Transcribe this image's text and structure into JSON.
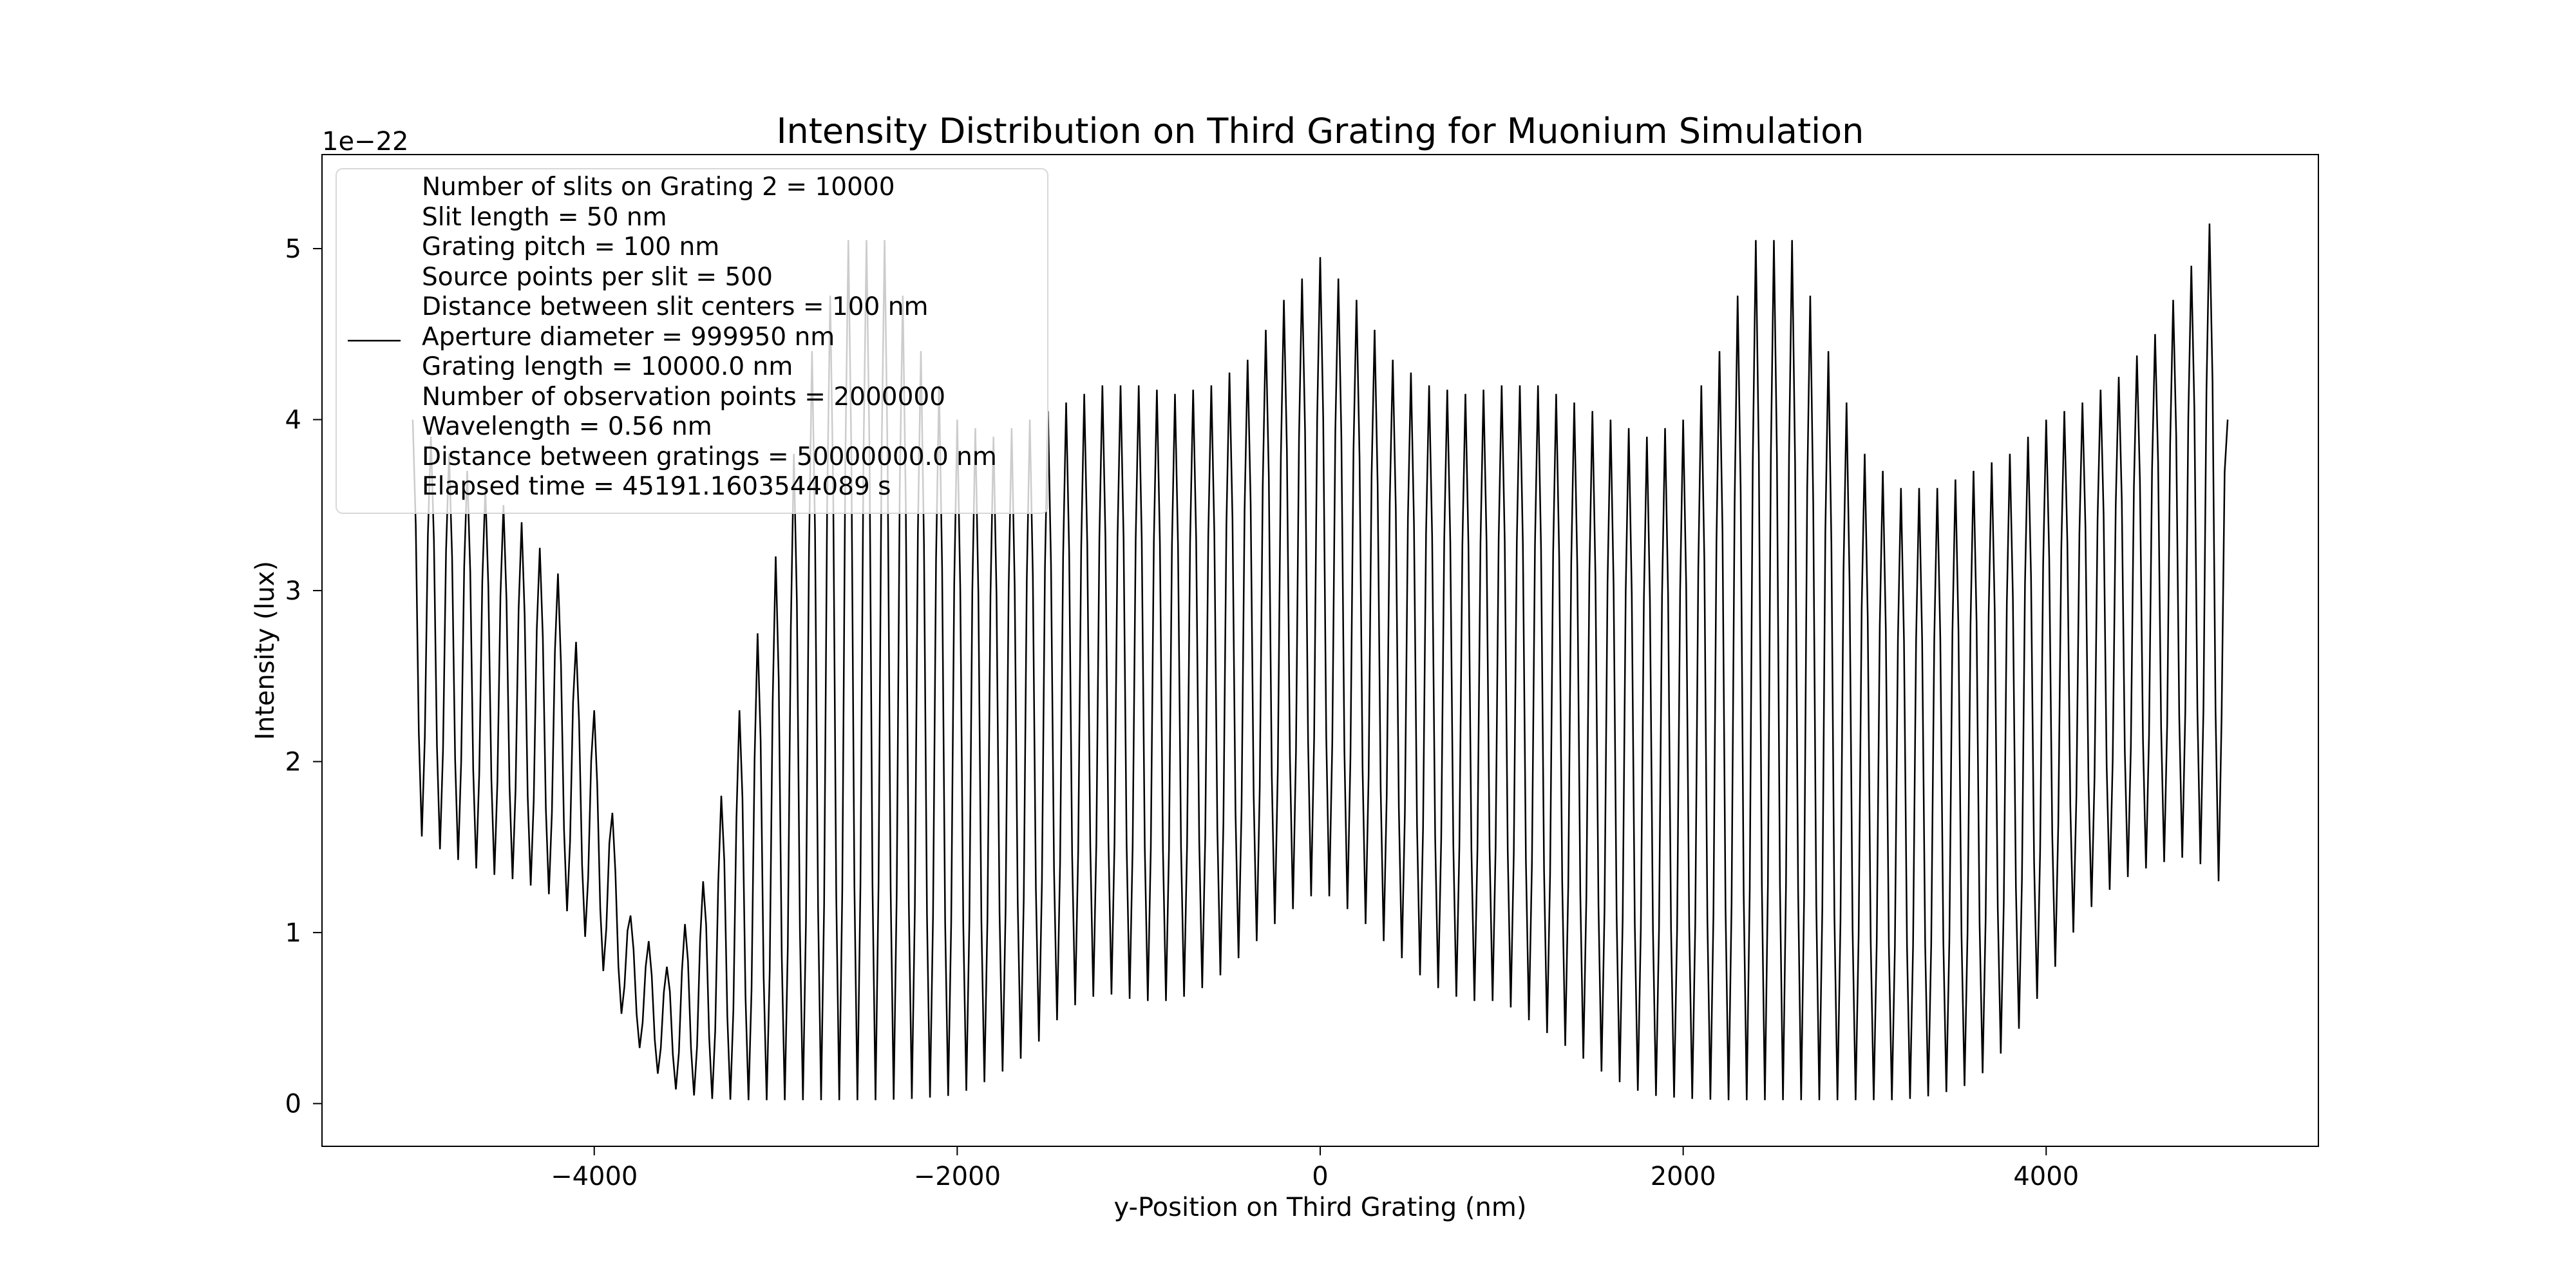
{
  "chart_data": {
    "type": "line",
    "title": "Intensity Distribution on Third Grating for Muonium Simulation",
    "xlabel": "y-Position on Third Grating (nm)",
    "ylabel": "Intensity (lux)",
    "y_offset_text": "1e−22",
    "xlim": [
      -5500,
      5500
    ],
    "ylim": [
      -0.25,
      5.55
    ],
    "x_ticks": [
      -4000,
      -2000,
      0,
      2000,
      4000
    ],
    "x_tick_labels": [
      "−4000",
      "−2000",
      "0",
      "2000",
      "4000"
    ],
    "y_ticks": [
      0,
      1,
      2,
      3,
      4,
      5
    ],
    "y_tick_labels": [
      "0",
      "1",
      "2",
      "3",
      "4",
      "5"
    ],
    "grid": false,
    "legend_position": "top-left",
    "series": [
      {
        "color": "#000000",
        "x_range": [
          -5000,
          5000
        ],
        "period": 100,
        "envelope_max": {
          "x": [
            -5000,
            -4800,
            -4600,
            -4400,
            -4200,
            -4000,
            -3800,
            -3600,
            -3400,
            -3200,
            -3000,
            -2800,
            -2600,
            -2400,
            -2200,
            -2000,
            -1800,
            -1600,
            -1400,
            -1200,
            -1000,
            -800,
            -600,
            -400,
            -200,
            0,
            200,
            400,
            600,
            800,
            1000,
            1200,
            1400,
            1600,
            1800,
            2000,
            2200,
            2400,
            2600,
            2800,
            3000,
            3200,
            3400,
            3600,
            3800,
            4000,
            4200,
            4400,
            4600,
            4800,
            4950,
            5000
          ],
          "y": [
            4.0,
            3.8,
            3.6,
            3.4,
            3.1,
            2.3,
            1.1,
            0.8,
            1.3,
            2.3,
            3.2,
            4.4,
            5.05,
            5.05,
            4.4,
            4.0,
            3.9,
            4.0,
            4.1,
            4.2,
            4.2,
            4.15,
            4.2,
            4.35,
            4.7,
            4.95,
            4.7,
            4.35,
            4.2,
            4.15,
            4.2,
            4.2,
            4.1,
            4.0,
            3.9,
            4.0,
            4.4,
            5.05,
            5.05,
            4.4,
            3.8,
            3.6,
            3.6,
            3.7,
            3.8,
            4.0,
            4.1,
            4.25,
            4.5,
            4.9,
            5.27,
            4.0
          ]
        },
        "envelope_min": {
          "x": [
            -5000,
            -4800,
            -4600,
            -4400,
            -4200,
            -4000,
            -3800,
            -3600,
            -3400,
            -3200,
            -3000,
            -2800,
            -2600,
            -2400,
            -2200,
            -2000,
            -1800,
            -1600,
            -1400,
            -1200,
            -1000,
            -800,
            -600,
            -400,
            -200,
            0,
            200,
            400,
            600,
            800,
            1000,
            1200,
            1400,
            1600,
            1800,
            2000,
            2200,
            2400,
            2600,
            2800,
            3000,
            3200,
            3400,
            3600,
            3800,
            4000,
            4200,
            4400,
            4600,
            4800,
            4950,
            5000
          ],
          "y": [
            1.6,
            1.45,
            1.35,
            1.3,
            1.2,
            0.9,
            0.4,
            0.1,
            0.03,
            0.02,
            0.02,
            0.02,
            0.02,
            0.02,
            0.03,
            0.05,
            0.15,
            0.3,
            0.55,
            0.65,
            0.6,
            0.6,
            0.7,
            0.9,
            1.1,
            1.25,
            1.1,
            0.9,
            0.7,
            0.6,
            0.6,
            0.45,
            0.3,
            0.15,
            0.05,
            0.03,
            0.02,
            0.02,
            0.02,
            0.02,
            0.02,
            0.02,
            0.05,
            0.12,
            0.35,
            0.7,
            1.1,
            1.3,
            1.4,
            1.45,
            1.3,
            1.6
          ]
        }
      }
    ]
  },
  "legend": {
    "lines": [
      "Number of slits on Grating 2 = 10000",
      "Slit length = 50 nm",
      "Grating pitch = 100 nm",
      "Source points per slit = 500",
      "Distance between slit centers = 100 nm",
      "Aperture diameter = 999950 nm",
      "Grating length = 10000.0 nm",
      "Number of observation points = 2000000",
      "Wavelength = 0.56 nm",
      "Distance between gratings = 50000000.0 nm",
      "Elapsed time = 45191.1603544089 s"
    ]
  }
}
